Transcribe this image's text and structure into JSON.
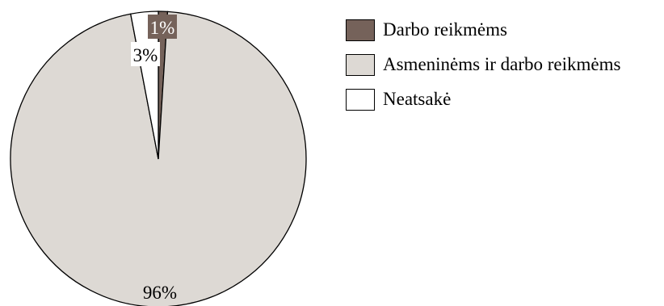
{
  "chart_data": {
    "type": "pie",
    "slices": [
      {
        "label": "Darbo reikmėms",
        "value": 1,
        "display": "1%",
        "color": "#75625a",
        "text_color": "#ffffff",
        "label_bg": "#75625a"
      },
      {
        "label": "Asmeninėms ir darbo reikmėms",
        "value": 96,
        "display": "96%",
        "color": "#ddd9d4",
        "text_color": "#000000",
        "label_bg": ""
      },
      {
        "label": "Neatsakė",
        "value": 3,
        "display": "3%",
        "color": "#ffffff",
        "text_color": "#000000",
        "label_bg": "#ffffff"
      }
    ],
    "start_angle_deg": 0,
    "direction": "clockwise",
    "legend_position": "right",
    "title": ""
  }
}
